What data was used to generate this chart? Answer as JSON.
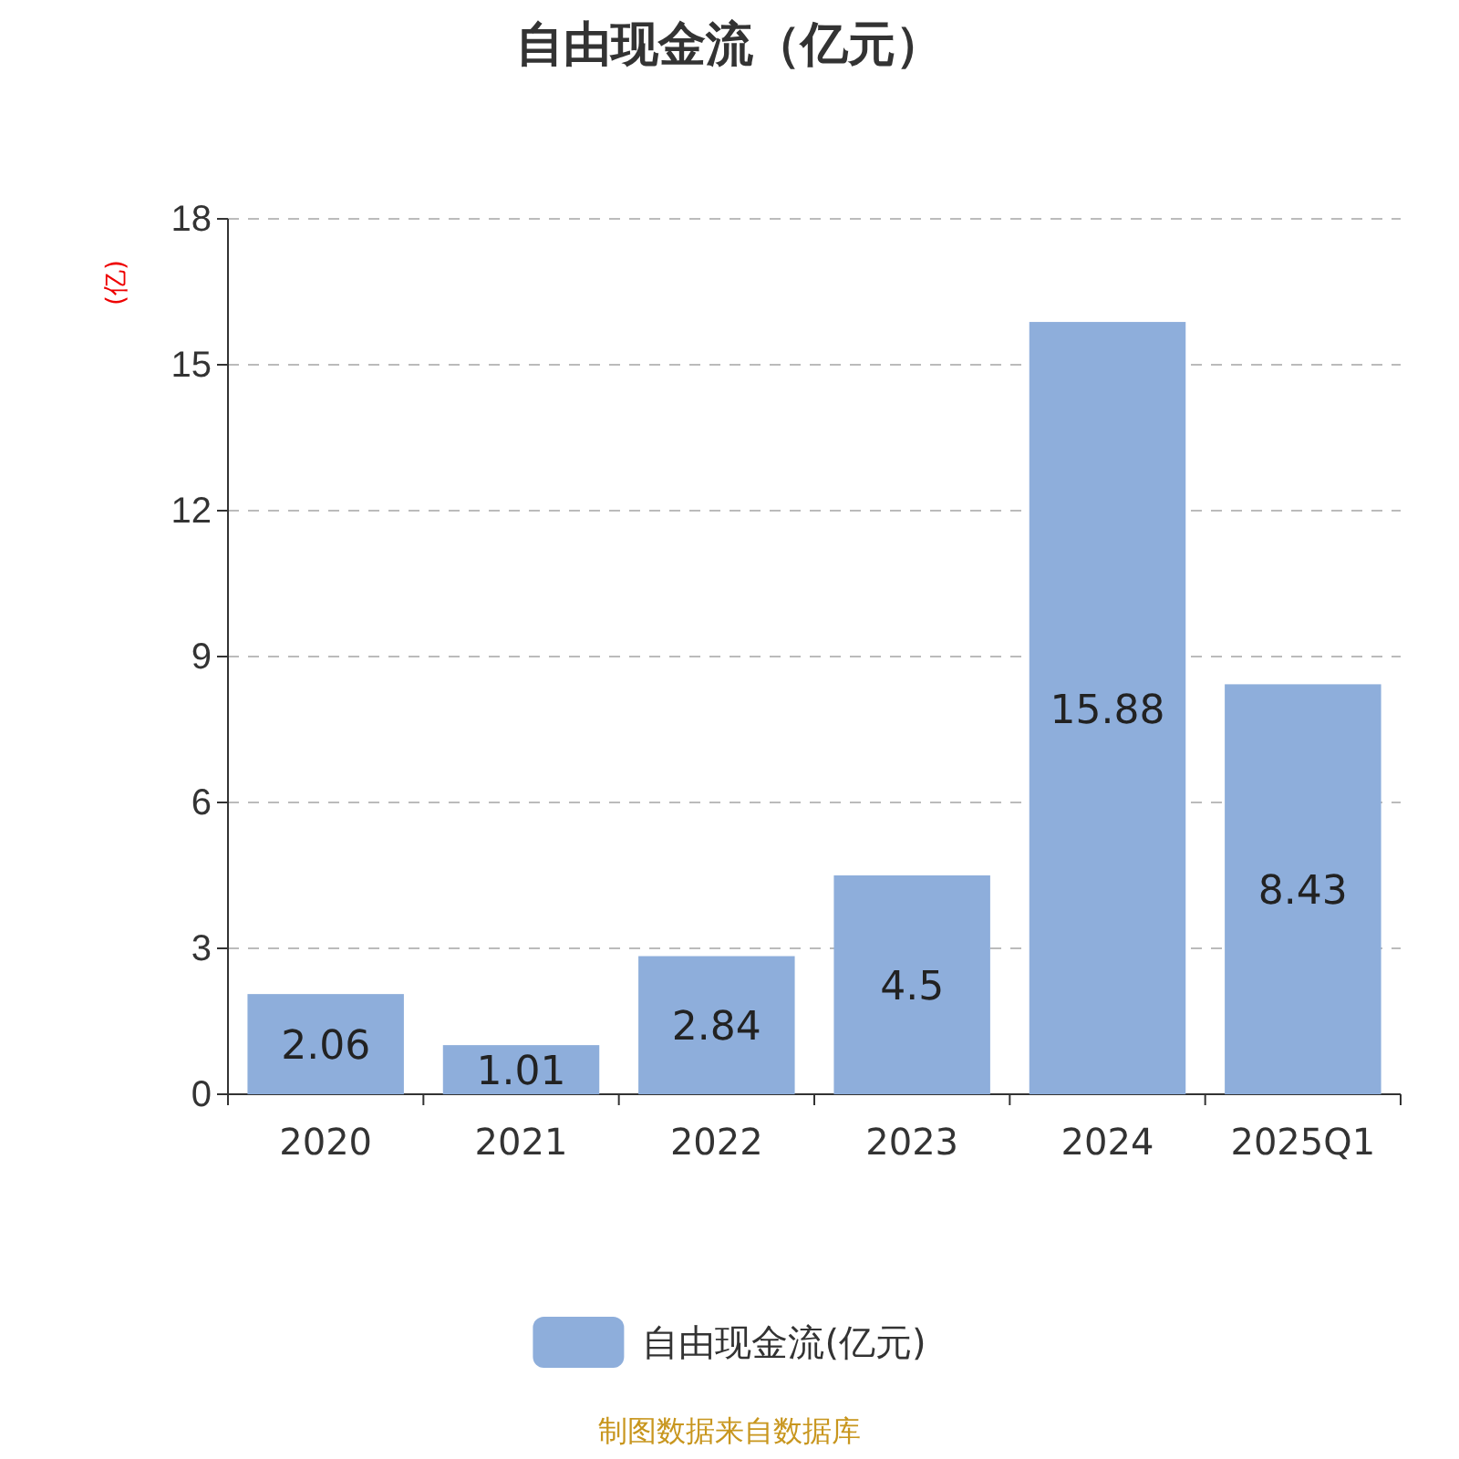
{
  "chart_data": {
    "type": "bar",
    "title": "自由现金流（亿元）",
    "ylabel": "(亿)",
    "categories": [
      "2020",
      "2021",
      "2022",
      "2023",
      "2024",
      "2025Q1"
    ],
    "series": [
      {
        "name": "自由现金流(亿元)",
        "color": "#8eaedb",
        "values": [
          2.06,
          1.01,
          2.84,
          4.5,
          15.88,
          8.43
        ]
      }
    ],
    "ylim": [
      0,
      18
    ],
    "yticks": [
      0,
      3,
      6,
      9,
      12,
      15,
      18
    ],
    "grid": "y",
    "legend": "bottom",
    "data_labels": true,
    "annotations": [
      "制图数据来自数据库"
    ]
  }
}
